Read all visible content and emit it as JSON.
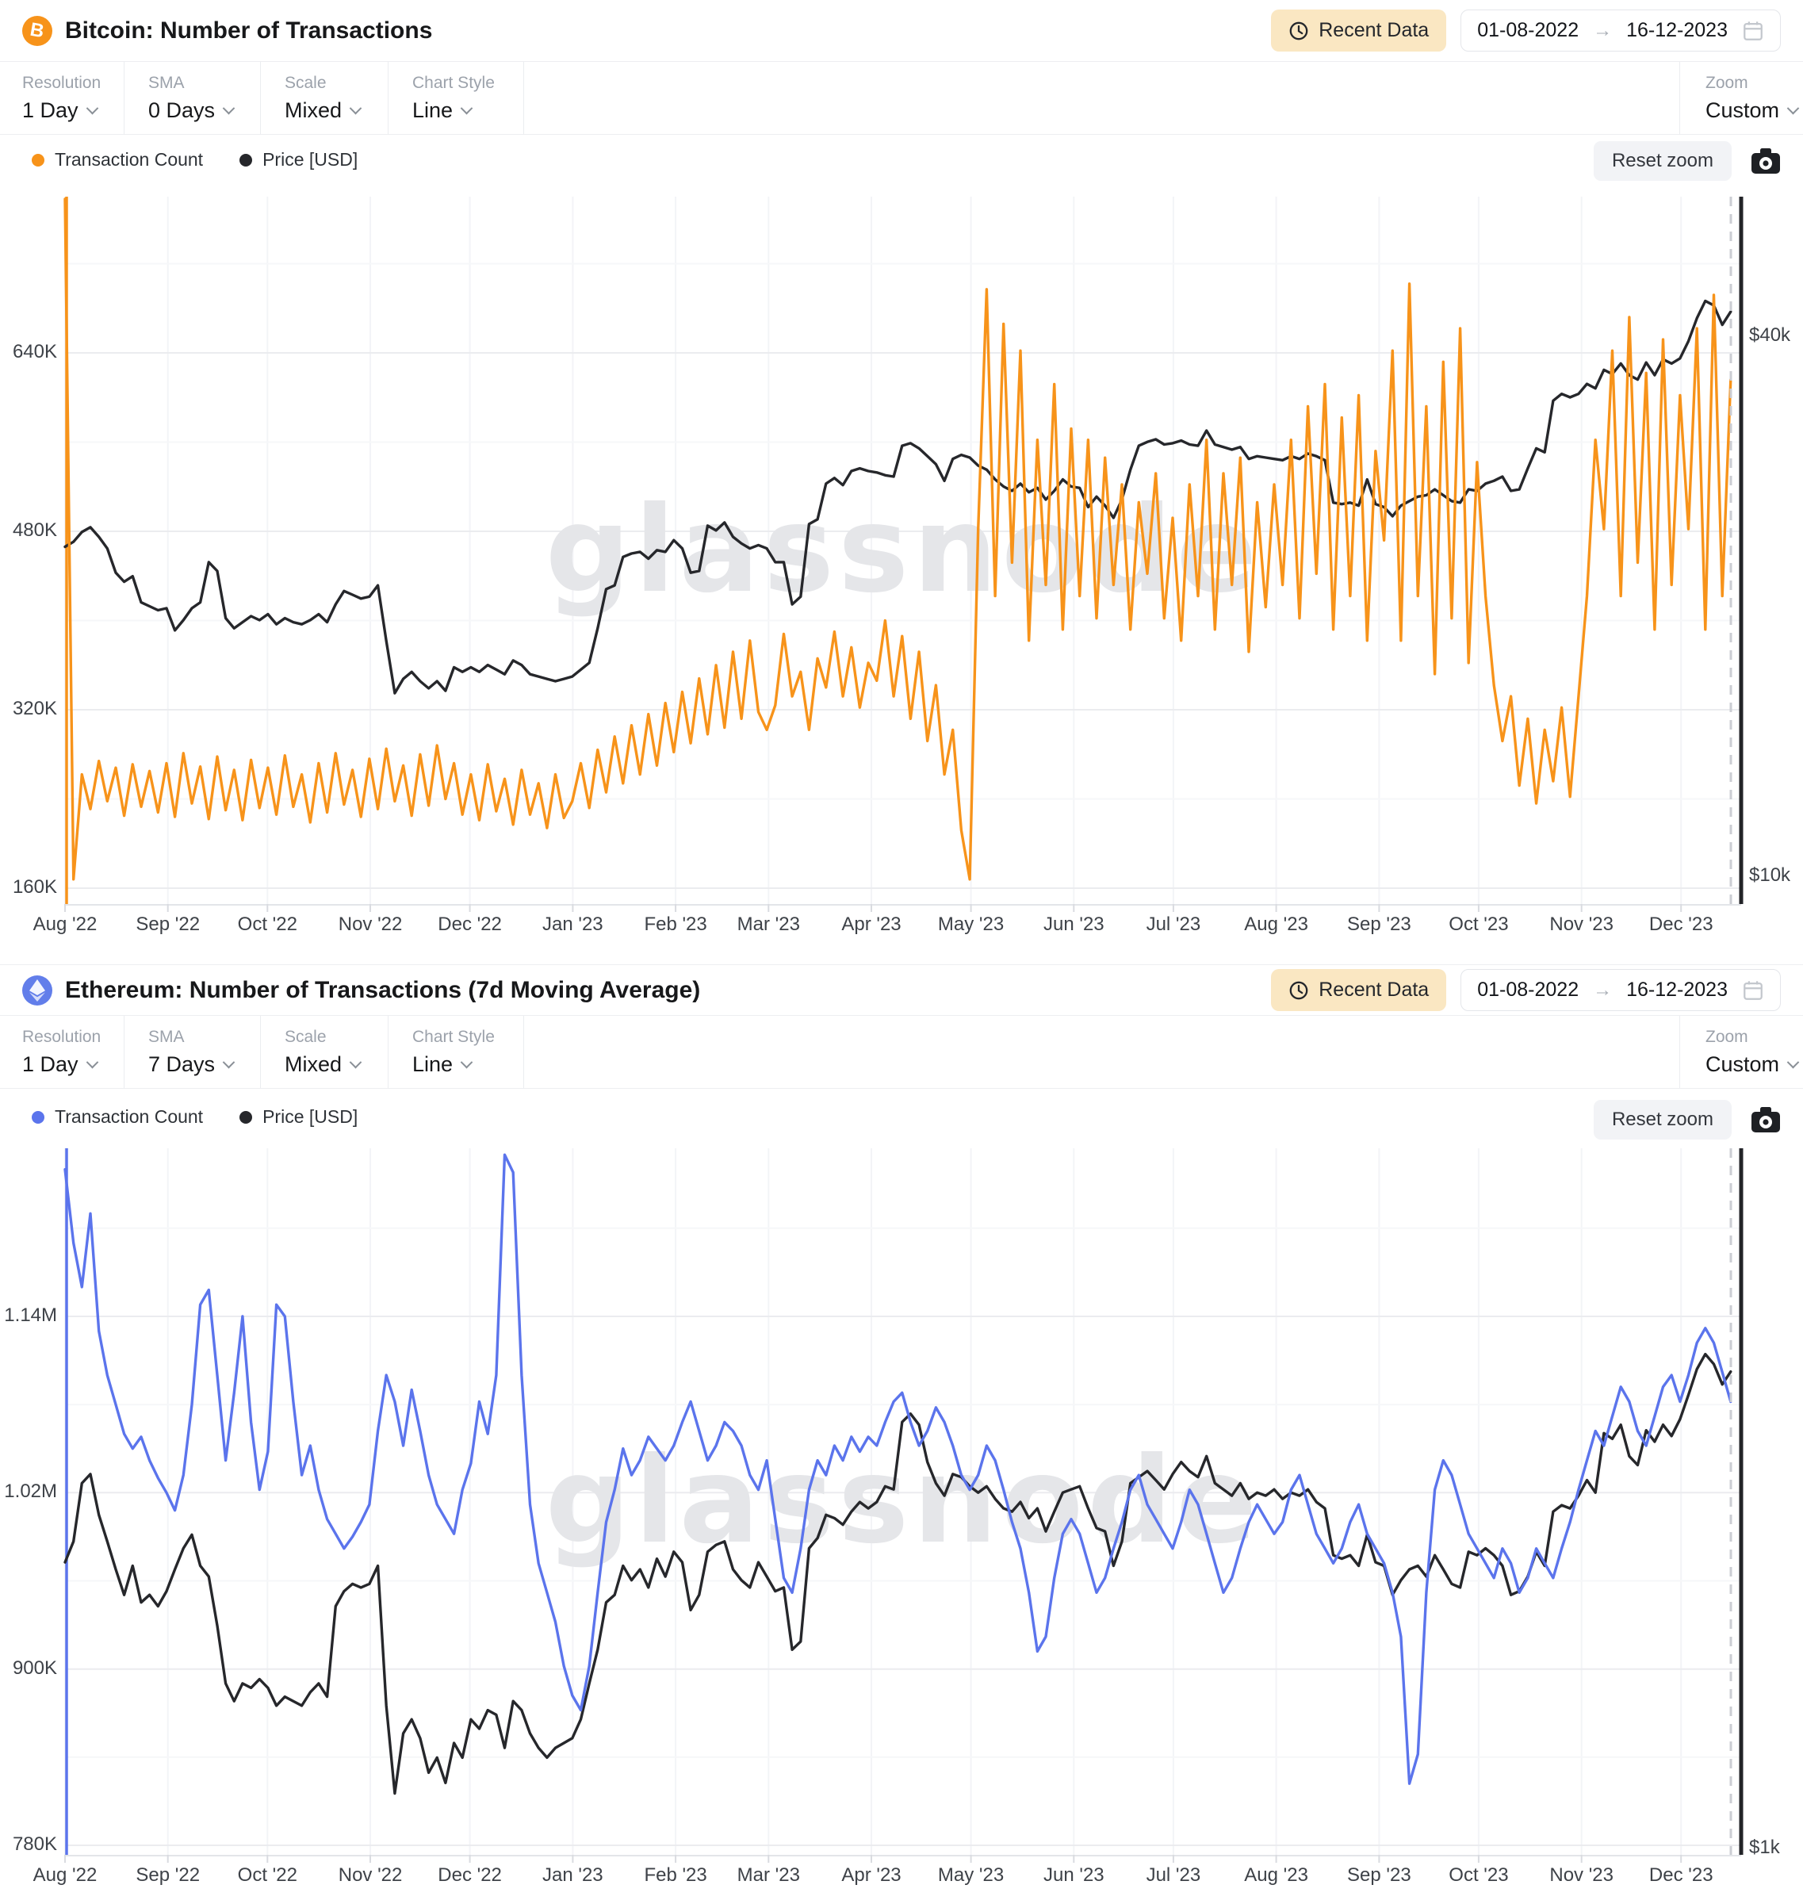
{
  "app": {
    "watermark": "glassnode"
  },
  "panels": [
    {
      "title": "Bitcoin: Number of Transactions",
      "header": {
        "recent_data_label": "Recent Data",
        "date_from": "01-08-2022",
        "date_to": "16-12-2023"
      },
      "toolbar": {
        "groups": [
          {
            "label": "Resolution",
            "value": "1 Day"
          },
          {
            "label": "SMA",
            "value": "0 Days"
          },
          {
            "label": "Scale",
            "value": "Mixed"
          },
          {
            "label": "Chart Style",
            "value": "Line"
          }
        ],
        "zoom": {
          "label": "Zoom",
          "value": "Custom"
        }
      },
      "legend": [
        {
          "label": "Transaction Count",
          "color": "#F7931A"
        },
        {
          "label": "Price [USD]",
          "color": "#26272B"
        }
      ],
      "actions": {
        "reset_zoom_label": "Reset zoom"
      }
    },
    {
      "title": "Ethereum: Number of Transactions (7d Moving Average)",
      "header": {
        "recent_data_label": "Recent Data",
        "date_from": "01-08-2022",
        "date_to": "16-12-2023"
      },
      "toolbar": {
        "groups": [
          {
            "label": "Resolution",
            "value": "1 Day"
          },
          {
            "label": "SMA",
            "value": "7 Days"
          },
          {
            "label": "Scale",
            "value": "Mixed"
          },
          {
            "label": "Chart Style",
            "value": "Line"
          }
        ],
        "zoom": {
          "label": "Zoom",
          "value": "Custom"
        }
      },
      "legend": [
        {
          "label": "Transaction Count",
          "color": "#5B74EC"
        },
        {
          "label": "Price [USD]",
          "color": "#26272B"
        }
      ],
      "actions": {
        "reset_zoom_label": "Reset zoom"
      }
    }
  ],
  "chart_data": [
    {
      "type": "line",
      "title": "Bitcoin: Number of Transactions",
      "x_start": "01-08-2022",
      "x_end": "16-12-2023",
      "x_total_days": 502,
      "sample_step_days": 2.548,
      "x_tick_labels": [
        "Aug '22",
        "Sep '22",
        "Oct '22",
        "Nov '22",
        "Dec '22",
        "Jan '23",
        "Feb '23",
        "Mar '23",
        "Apr '23",
        "May '23",
        "Jun '23",
        "Jul '23",
        "Aug '23",
        "Sep '23",
        "Oct '23",
        "Nov '23",
        "Dec '23"
      ],
      "x_tick_days": [
        0,
        31,
        61,
        92,
        122,
        153,
        184,
        212,
        243,
        273,
        304,
        334,
        365,
        396,
        426,
        457,
        487
      ],
      "left_axis": {
        "name": "Transaction Count",
        "scale": "linear",
        "ticks": [
          {
            "label": "160K",
            "value": 160000
          },
          {
            "label": "320K",
            "value": 320000
          },
          {
            "label": "480K",
            "value": 480000
          },
          {
            "label": "640K",
            "value": 640000
          }
        ]
      },
      "right_axis": {
        "name": "Price [USD]",
        "scale": "log",
        "ticks": [
          {
            "label": "$10k",
            "value": 10000
          },
          {
            "label": "$40k",
            "value": 40000
          }
        ]
      },
      "watermark": "glassnode",
      "series": [
        {
          "name": "Transaction Count",
          "axis": "left",
          "color": "#F7931A",
          "unit": "thousand transactions",
          "values_thousands": [
            778,
            168,
            262,
            231,
            274,
            238,
            268,
            225,
            271,
            233,
            265,
            228,
            272,
            224,
            281,
            236,
            269,
            222,
            278,
            230,
            266,
            221,
            275,
            232,
            268,
            226,
            279,
            233,
            262,
            219,
            272,
            228,
            281,
            235,
            266,
            224,
            276,
            231,
            285,
            238,
            270,
            225,
            280,
            234,
            288,
            240,
            272,
            226,
            262,
            221,
            271,
            229,
            258,
            217,
            266,
            226,
            254,
            214,
            262,
            223,
            238,
            272,
            232,
            284,
            246,
            296,
            254,
            306,
            262,
            316,
            270,
            326,
            282,
            336,
            290,
            348,
            298,
            360,
            304,
            372,
            312,
            382,
            318,
            302,
            324,
            388,
            332,
            354,
            302,
            366,
            340,
            390,
            332,
            376,
            322,
            362,
            346,
            400,
            332,
            386,
            312,
            372,
            292,
            342,
            262,
            302,
            212,
            168,
            482,
            697,
            422,
            666,
            452,
            642,
            382,
            562,
            432,
            612,
            392,
            572,
            422,
            562,
            402,
            546,
            432,
            522,
            392,
            506,
            442,
            532,
            402,
            492,
            382,
            522,
            422,
            562,
            392,
            532,
            432,
            546,
            372,
            506,
            412,
            522,
            432,
            562,
            402,
            592,
            442,
            612,
            392,
            582,
            422,
            602,
            382,
            552,
            472,
            642,
            382,
            702,
            422,
            592,
            352,
            632,
            402,
            662,
            362,
            542,
            422,
            342,
            292,
            332,
            252,
            312,
            236,
            302,
            256,
            322,
            242,
            332,
            422,
            562,
            482,
            642,
            422,
            672,
            452,
            622,
            392,
            652,
            432,
            602,
            482,
            662,
            392,
            692,
            422,
            616
          ]
        },
        {
          "name": "Price [USD]",
          "axis": "right",
          "color": "#26272B",
          "unit": "thousand USD",
          "values_usd_thousands": [
            23.3,
            23.6,
            24.2,
            24.5,
            23.9,
            23.2,
            21.8,
            21.3,
            21.6,
            20.2,
            20.0,
            19.8,
            19.9,
            18.8,
            19.3,
            19.9,
            20.2,
            22.4,
            21.9,
            19.4,
            18.9,
            19.2,
            19.5,
            19.3,
            19.6,
            19.1,
            19.4,
            19.2,
            19.1,
            19.3,
            19.6,
            19.2,
            20.1,
            20.8,
            20.6,
            20.4,
            20.5,
            21.1,
            18.3,
            16.0,
            16.6,
            16.9,
            16.5,
            16.2,
            16.5,
            16.1,
            17.1,
            16.9,
            17.1,
            16.9,
            17.2,
            17.0,
            16.8,
            17.4,
            17.2,
            16.8,
            16.7,
            16.6,
            16.5,
            16.6,
            16.7,
            17.0,
            17.3,
            18.9,
            20.9,
            21.1,
            22.7,
            22.9,
            23.0,
            22.6,
            23.1,
            23.0,
            23.7,
            23.2,
            21.8,
            21.9,
            24.6,
            24.3,
            24.8,
            23.9,
            23.5,
            23.2,
            23.4,
            23.2,
            22.4,
            22.4,
            20.1,
            20.5,
            24.7,
            25.0,
            27.4,
            27.8,
            27.3,
            28.3,
            28.5,
            28.3,
            28.2,
            28.0,
            27.9,
            30.2,
            30.4,
            30.0,
            29.4,
            28.8,
            27.6,
            29.2,
            29.5,
            29.3,
            28.7,
            28.4,
            27.7,
            27.2,
            26.9,
            27.4,
            26.8,
            27.1,
            26.3,
            26.9,
            27.7,
            27.2,
            27.1,
            25.8,
            26.5,
            25.9,
            25.1,
            26.3,
            28.4,
            30.2,
            30.5,
            30.7,
            30.3,
            30.4,
            30.6,
            30.3,
            30.2,
            31.4,
            30.3,
            30.1,
            29.9,
            30.1,
            29.2,
            29.4,
            29.3,
            29.2,
            29.1,
            29.4,
            29.2,
            29.6,
            29.4,
            29.1,
            26.1,
            26.0,
            26.1,
            25.9,
            27.7,
            26.0,
            25.8,
            25.2,
            25.9,
            26.2,
            26.5,
            26.6,
            27.0,
            26.6,
            26.2,
            26.1,
            27.0,
            26.9,
            27.4,
            27.6,
            27.9,
            26.9,
            27.0,
            28.5,
            30.0,
            29.7,
            33.9,
            34.5,
            34.2,
            34.5,
            35.4,
            35.0,
            36.7,
            36.3,
            37.3,
            36.2,
            35.8,
            37.4,
            36.2,
            37.7,
            37.3,
            37.8,
            39.5,
            41.9,
            43.8,
            43.3,
            41.2,
            42.6
          ]
        }
      ]
    },
    {
      "type": "line",
      "title": "Ethereum: Number of Transactions (7d Moving Average)",
      "x_start": "01-08-2022",
      "x_end": "16-12-2023",
      "x_total_days": 502,
      "sample_step_days": 2.548,
      "x_tick_labels": [
        "Aug '22",
        "Sep '22",
        "Oct '22",
        "Nov '22",
        "Dec '22",
        "Jan '23",
        "Feb '23",
        "Mar '23",
        "Apr '23",
        "May '23",
        "Jun '23",
        "Jul '23",
        "Aug '23",
        "Sep '23",
        "Oct '23",
        "Nov '23",
        "Dec '23"
      ],
      "x_tick_days": [
        0,
        31,
        61,
        92,
        122,
        153,
        184,
        212,
        243,
        273,
        304,
        334,
        365,
        396,
        426,
        457,
        487
      ],
      "left_axis": {
        "name": "Transaction Count",
        "scale": "linear",
        "ticks": [
          {
            "label": "780K",
            "value": 780000
          },
          {
            "label": "900K",
            "value": 900000
          },
          {
            "label": "1.02M",
            "value": 1020000
          },
          {
            "label": "1.14M",
            "value": 1140000
          }
        ]
      },
      "right_axis": {
        "name": "Price [USD]",
        "scale": "log",
        "ticks": [
          {
            "label": "$1k",
            "value": 1000
          }
        ]
      },
      "watermark": "glassnode",
      "series": [
        {
          "name": "Transaction Count",
          "axis": "left",
          "color": "#5B74EC",
          "unit": "thousand transactions",
          "values_thousands": [
            1240,
            1190,
            1160,
            1210,
            1130,
            1100,
            1080,
            1060,
            1050,
            1058,
            1042,
            1030,
            1020,
            1008,
            1032,
            1080,
            1148,
            1158,
            1100,
            1042,
            1088,
            1140,
            1068,
            1022,
            1048,
            1148,
            1140,
            1082,
            1032,
            1052,
            1022,
            1002,
            992,
            982,
            990,
            1000,
            1012,
            1062,
            1100,
            1082,
            1052,
            1090,
            1062,
            1032,
            1012,
            1002,
            992,
            1022,
            1040,
            1082,
            1060,
            1100,
            1250,
            1238,
            1100,
            1012,
            972,
            952,
            932,
            902,
            882,
            872,
            902,
            952,
            1000,
            1022,
            1050,
            1032,
            1042,
            1058,
            1050,
            1042,
            1052,
            1068,
            1082,
            1062,
            1042,
            1052,
            1068,
            1062,
            1052,
            1032,
            1022,
            1042,
            1002,
            962,
            952,
            982,
            1022,
            1042,
            1032,
            1052,
            1042,
            1058,
            1048,
            1058,
            1052,
            1068,
            1082,
            1088,
            1068,
            1052,
            1062,
            1078,
            1068,
            1052,
            1032,
            1022,
            1032,
            1052,
            1042,
            1022,
            1000,
            982,
            952,
            912,
            922,
            962,
            992,
            1002,
            992,
            972,
            952,
            962,
            982,
            1000,
            1022,
            1032,
            1012,
            1002,
            992,
            982,
            1000,
            1022,
            1012,
            992,
            972,
            952,
            962,
            982,
            1000,
            1012,
            1002,
            992,
            1000,
            1022,
            1032,
            1012,
            992,
            982,
            972,
            982,
            1000,
            1012,
            992,
            982,
            972,
            952,
            922,
            822,
            842,
            952,
            1022,
            1042,
            1032,
            1012,
            992,
            982,
            972,
            962,
            982,
            972,
            952,
            962,
            982,
            972,
            962,
            982,
            1000,
            1022,
            1042,
            1062,
            1052,
            1072,
            1092,
            1082,
            1062,
            1052,
            1072,
            1092,
            1100,
            1082,
            1100,
            1122,
            1132,
            1122,
            1102,
            1082
          ]
        },
        {
          "name": "Price [USD]",
          "axis": "right",
          "color": "#26272B",
          "unit": "thousand USD",
          "values_usd_thousands": [
            1.64,
            1.7,
            1.88,
            1.91,
            1.78,
            1.7,
            1.62,
            1.55,
            1.63,
            1.53,
            1.55,
            1.52,
            1.56,
            1.62,
            1.68,
            1.72,
            1.63,
            1.6,
            1.47,
            1.33,
            1.29,
            1.33,
            1.32,
            1.34,
            1.32,
            1.28,
            1.3,
            1.29,
            1.28,
            1.31,
            1.33,
            1.3,
            1.52,
            1.56,
            1.58,
            1.57,
            1.58,
            1.63,
            1.28,
            1.1,
            1.22,
            1.25,
            1.21,
            1.14,
            1.17,
            1.12,
            1.2,
            1.17,
            1.25,
            1.23,
            1.27,
            1.26,
            1.19,
            1.29,
            1.27,
            1.22,
            1.19,
            1.17,
            1.19,
            1.2,
            1.21,
            1.25,
            1.33,
            1.41,
            1.53,
            1.55,
            1.63,
            1.59,
            1.62,
            1.57,
            1.65,
            1.6,
            1.67,
            1.64,
            1.51,
            1.55,
            1.67,
            1.69,
            1.7,
            1.62,
            1.59,
            1.57,
            1.64,
            1.6,
            1.56,
            1.57,
            1.41,
            1.43,
            1.68,
            1.71,
            1.78,
            1.77,
            1.75,
            1.79,
            1.82,
            1.8,
            1.82,
            1.87,
            1.86,
            2.09,
            2.12,
            2.08,
            1.95,
            1.88,
            1.84,
            1.91,
            1.9,
            1.87,
            1.85,
            1.87,
            1.83,
            1.8,
            1.79,
            1.82,
            1.77,
            1.8,
            1.73,
            1.79,
            1.85,
            1.86,
            1.87,
            1.8,
            1.74,
            1.73,
            1.63,
            1.7,
            1.88,
            1.9,
            1.92,
            1.89,
            1.86,
            1.91,
            1.95,
            1.92,
            1.9,
            1.97,
            1.88,
            1.86,
            1.84,
            1.88,
            1.83,
            1.85,
            1.84,
            1.86,
            1.83,
            1.85,
            1.84,
            1.86,
            1.82,
            1.8,
            1.66,
            1.65,
            1.66,
            1.63,
            1.72,
            1.64,
            1.63,
            1.55,
            1.59,
            1.62,
            1.63,
            1.6,
            1.66,
            1.62,
            1.58,
            1.57,
            1.67,
            1.66,
            1.68,
            1.66,
            1.63,
            1.55,
            1.56,
            1.6,
            1.67,
            1.63,
            1.79,
            1.81,
            1.8,
            1.84,
            1.89,
            1.85,
            2.05,
            2.03,
            2.08,
            1.97,
            1.94,
            2.06,
            2.02,
            2.08,
            2.04,
            2.1,
            2.19,
            2.29,
            2.35,
            2.31,
            2.23,
            2.28
          ]
        }
      ]
    }
  ]
}
